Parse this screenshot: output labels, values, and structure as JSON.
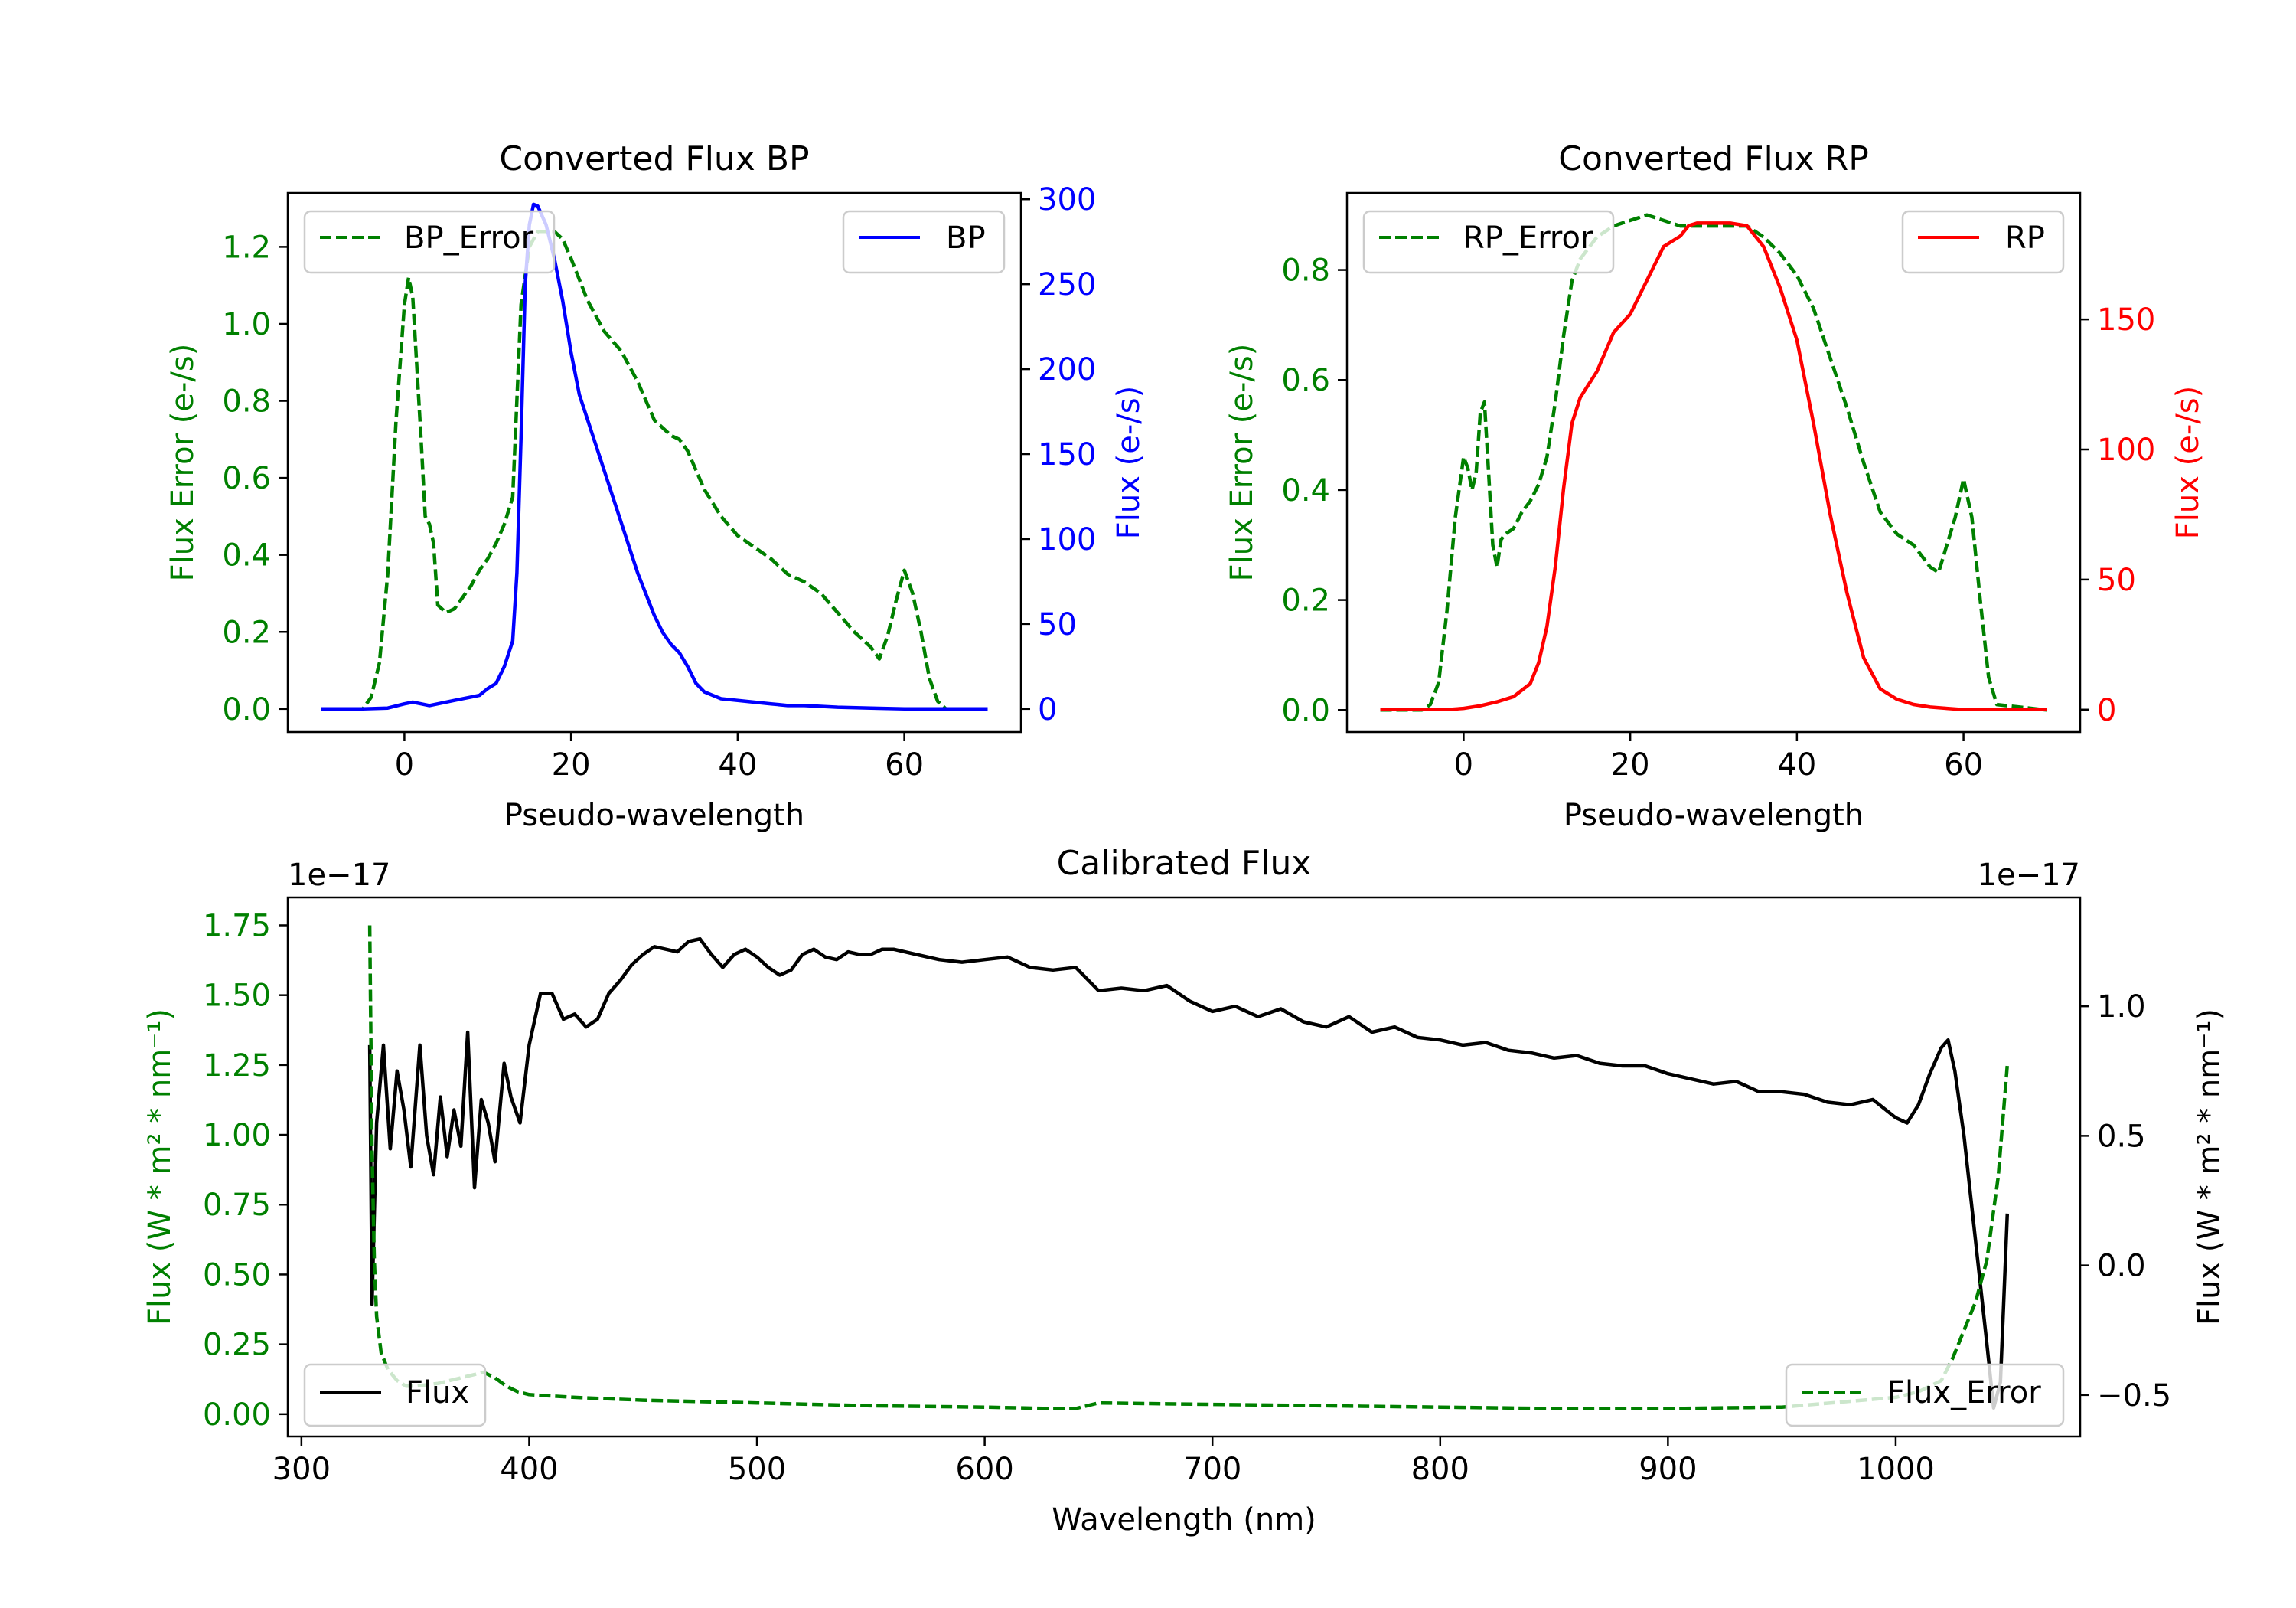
{
  "chart_data": [
    {
      "type": "line",
      "title": "Converted Flux BP",
      "xlabel": "Pseudo-wavelength",
      "ylabel_left": "Flux Error (e-/s)",
      "ylabel_right": "Flux (e-/s)",
      "xlim": [
        -14,
        74
      ],
      "ylim_left": [
        -0.06,
        1.34
      ],
      "ylim_right": [
        -13.6,
        303.7
      ],
      "xticks": [
        0,
        20,
        40,
        60
      ],
      "yticks_left": [
        0.0,
        0.2,
        0.4,
        0.6,
        0.8,
        1.0,
        1.2
      ],
      "yticks_right": [
        0,
        50,
        100,
        150,
        200,
        250,
        300
      ],
      "grid": false,
      "series": [
        {
          "name": "BP_Error",
          "axis": "left",
          "style": "dashed",
          "color": "#008000",
          "legend_position": "upper left",
          "x": [
            -10,
            -5,
            -4,
            -3,
            -2,
            -1,
            0,
            0.5,
            1,
            2,
            2.5,
            3,
            3.5,
            4,
            5,
            6,
            7,
            8,
            9,
            10,
            11,
            12,
            13,
            14,
            15,
            16,
            17,
            18,
            19,
            20,
            22,
            24,
            26,
            28,
            30,
            32,
            33,
            34,
            35,
            36,
            38,
            40,
            42,
            44,
            46,
            48,
            50,
            52,
            54,
            55,
            56,
            57,
            58,
            59,
            60,
            61,
            62,
            63,
            64,
            65,
            70
          ],
          "y": [
            0.0,
            0.0,
            0.03,
            0.12,
            0.35,
            0.75,
            1.05,
            1.12,
            1.07,
            0.7,
            0.5,
            0.48,
            0.43,
            0.27,
            0.25,
            0.26,
            0.29,
            0.32,
            0.36,
            0.39,
            0.43,
            0.48,
            0.55,
            1.05,
            1.2,
            1.24,
            1.24,
            1.24,
            1.22,
            1.17,
            1.06,
            0.98,
            0.93,
            0.85,
            0.75,
            0.71,
            0.7,
            0.67,
            0.62,
            0.57,
            0.5,
            0.45,
            0.42,
            0.39,
            0.35,
            0.33,
            0.3,
            0.25,
            0.2,
            0.18,
            0.16,
            0.13,
            0.19,
            0.28,
            0.36,
            0.3,
            0.2,
            0.08,
            0.02,
            0.0,
            0.0
          ]
        },
        {
          "name": "BP",
          "axis": "right",
          "style": "solid",
          "color": "#0000ff",
          "legend_position": "upper right",
          "x": [
            -10,
            -5,
            -2,
            0,
            1,
            2,
            3,
            4,
            6,
            8,
            9,
            10,
            11,
            12,
            13,
            13.5,
            14,
            14.5,
            15,
            15.5,
            16,
            17,
            18,
            19,
            20,
            21,
            22,
            24,
            26,
            28,
            30,
            31,
            32,
            33,
            34,
            35,
            36,
            37,
            38,
            40,
            42,
            44,
            46,
            48,
            50,
            52,
            56,
            60,
            65,
            70
          ],
          "y": [
            0,
            0,
            0.5,
            3,
            4,
            3,
            2,
            3,
            5,
            7,
            8,
            12,
            15,
            25,
            40,
            80,
            160,
            250,
            285,
            297,
            296,
            285,
            265,
            240,
            210,
            185,
            170,
            140,
            110,
            80,
            55,
            45,
            38,
            33,
            25,
            15,
            10,
            8,
            6,
            5,
            4,
            3,
            2,
            2,
            1.5,
            1,
            0.5,
            0,
            0,
            0
          ]
        }
      ]
    },
    {
      "type": "line",
      "title": "Converted Flux RP",
      "xlabel": "Pseudo-wavelength",
      "ylabel_left": "Flux Error (e-/s)",
      "ylabel_right": "Flux (e-/s)",
      "xlim": [
        -14,
        74
      ],
      "ylim_left": [
        -0.04,
        0.94
      ],
      "ylim_right": [
        -8.6,
        198.6
      ],
      "xticks": [
        0,
        20,
        40,
        60
      ],
      "yticks_left": [
        0.0,
        0.2,
        0.4,
        0.6,
        0.8
      ],
      "yticks_right": [
        0,
        50,
        100,
        150
      ],
      "grid": false,
      "series": [
        {
          "name": "RP_Error",
          "axis": "left",
          "style": "dashed",
          "color": "#008000",
          "legend_position": "upper left",
          "x": [
            -10,
            -5,
            -4,
            -3,
            -2,
            -1,
            0,
            0.5,
            1,
            1.5,
            2,
            2.5,
            3,
            3.5,
            4,
            4.5,
            5,
            6,
            7,
            8,
            9,
            10,
            11,
            12,
            13,
            14,
            16,
            18,
            20,
            22,
            24,
            26,
            28,
            30,
            32,
            34,
            36,
            38,
            40,
            42,
            44,
            46,
            48,
            50,
            52,
            54,
            56,
            57,
            58,
            59,
            60,
            61,
            62,
            63,
            64,
            70
          ],
          "y": [
            0.0,
            0.0,
            0.01,
            0.05,
            0.18,
            0.35,
            0.46,
            0.44,
            0.4,
            0.43,
            0.54,
            0.56,
            0.43,
            0.3,
            0.26,
            0.31,
            0.32,
            0.33,
            0.36,
            0.38,
            0.41,
            0.46,
            0.56,
            0.68,
            0.78,
            0.82,
            0.86,
            0.88,
            0.89,
            0.9,
            0.89,
            0.88,
            0.88,
            0.88,
            0.88,
            0.88,
            0.86,
            0.83,
            0.79,
            0.73,
            0.64,
            0.55,
            0.45,
            0.36,
            0.32,
            0.3,
            0.26,
            0.25,
            0.3,
            0.35,
            0.42,
            0.35,
            0.2,
            0.06,
            0.01,
            0.0
          ]
        },
        {
          "name": "RP",
          "axis": "right",
          "style": "solid",
          "color": "#ff0000",
          "legend_position": "upper right",
          "x": [
            -10,
            -5,
            -2,
            0,
            2,
            4,
            6,
            8,
            9,
            10,
            11,
            12,
            13,
            14,
            16,
            18,
            20,
            22,
            24,
            26,
            27,
            28,
            30,
            32,
            34,
            35,
            36,
            38,
            40,
            42,
            44,
            46,
            48,
            50,
            52,
            54,
            56,
            58,
            60,
            62,
            65,
            70
          ],
          "y": [
            0,
            0,
            0,
            0.5,
            1.5,
            3,
            5,
            10,
            18,
            32,
            55,
            85,
            110,
            120,
            130,
            145,
            152,
            165,
            178,
            182,
            186,
            187,
            187,
            187,
            186,
            182,
            178,
            162,
            142,
            110,
            75,
            45,
            20,
            8,
            4,
            2,
            1,
            0.5,
            0,
            0,
            0,
            0
          ]
        }
      ]
    },
    {
      "type": "line",
      "title": "Calibrated Flux",
      "xlabel": "Wavelength (nm)",
      "ylabel_left": "Flux (W * m² * nm⁻¹)",
      "ylabel_right": "Flux (W * m² * nm⁻¹)",
      "offset_left": "1e−17",
      "offset_right": "1e−17",
      "xlim": [
        294,
        1081
      ],
      "ylim_left": [
        -0.08,
        1.85
      ],
      "ylim_right": [
        -0.66,
        1.42
      ],
      "xticks": [
        300,
        400,
        500,
        600,
        700,
        800,
        900,
        1000
      ],
      "yticks_left": [
        0.0,
        0.25,
        0.5,
        0.75,
        1.0,
        1.25,
        1.5,
        1.75
      ],
      "yticks_left_labels": [
        "0.00",
        "0.25",
        "0.50",
        "0.75",
        "1.00",
        "1.25",
        "1.50",
        "1.75"
      ],
      "yticks_right": [
        -0.5,
        0.0,
        0.5,
        1.0
      ],
      "yticks_right_labels": [
        "−0.5",
        "0.0",
        "0.5",
        "1.0"
      ],
      "grid": false,
      "series": [
        {
          "name": "Flux",
          "axis": "right",
          "style": "solid",
          "color": "#000000",
          "legend_position": "lower left",
          "x": [
            330,
            331,
            333,
            336,
            339,
            342,
            345,
            348,
            352,
            355,
            358,
            361,
            364,
            367,
            370,
            373,
            376,
            379,
            382,
            385,
            389,
            392,
            396,
            400,
            405,
            410,
            415,
            420,
            425,
            430,
            435,
            440,
            445,
            450,
            455,
            460,
            465,
            470,
            475,
            480,
            485,
            490,
            495,
            500,
            505,
            510,
            515,
            520,
            525,
            530,
            535,
            540,
            545,
            550,
            555,
            560,
            570,
            580,
            590,
            600,
            610,
            620,
            630,
            640,
            650,
            660,
            670,
            680,
            690,
            700,
            710,
            720,
            730,
            740,
            750,
            760,
            770,
            780,
            790,
            800,
            810,
            820,
            830,
            840,
            850,
            860,
            870,
            880,
            890,
            900,
            910,
            920,
            930,
            940,
            950,
            960,
            970,
            980,
            990,
            1000,
            1005,
            1010,
            1015,
            1020,
            1023,
            1026,
            1030,
            1035,
            1040,
            1043,
            1046,
            1049
          ],
          "y": [
            0.85,
            -0.15,
            0.55,
            0.85,
            0.45,
            0.75,
            0.6,
            0.38,
            0.85,
            0.5,
            0.35,
            0.65,
            0.42,
            0.6,
            0.46,
            0.9,
            0.3,
            0.64,
            0.55,
            0.4,
            0.78,
            0.65,
            0.55,
            0.85,
            1.05,
            1.05,
            0.95,
            0.97,
            0.92,
            0.95,
            1.05,
            1.1,
            1.16,
            1.2,
            1.23,
            1.22,
            1.21,
            1.25,
            1.26,
            1.2,
            1.15,
            1.2,
            1.22,
            1.19,
            1.15,
            1.12,
            1.14,
            1.2,
            1.22,
            1.19,
            1.18,
            1.21,
            1.2,
            1.2,
            1.22,
            1.22,
            1.2,
            1.18,
            1.17,
            1.18,
            1.19,
            1.15,
            1.14,
            1.15,
            1.06,
            1.07,
            1.06,
            1.08,
            1.02,
            0.98,
            1.0,
            0.96,
            0.99,
            0.94,
            0.92,
            0.96,
            0.9,
            0.92,
            0.88,
            0.87,
            0.85,
            0.86,
            0.83,
            0.82,
            0.8,
            0.81,
            0.78,
            0.77,
            0.77,
            0.74,
            0.72,
            0.7,
            0.71,
            0.67,
            0.67,
            0.66,
            0.63,
            0.62,
            0.64,
            0.57,
            0.55,
            0.62,
            0.74,
            0.84,
            0.87,
            0.75,
            0.5,
            0.1,
            -0.3,
            -0.55,
            -0.45,
            0.2
          ]
        },
        {
          "name": "Flux_Error",
          "axis": "left",
          "style": "dashed",
          "color": "#008000",
          "legend_position": "lower right",
          "x": [
            330,
            331,
            332,
            333,
            335,
            338,
            342,
            346,
            350,
            360,
            370,
            380,
            385,
            390,
            395,
            400,
            420,
            450,
            500,
            550,
            600,
            630,
            640,
            650,
            700,
            750,
            800,
            850,
            900,
            950,
            1000,
            1010,
            1020,
            1025,
            1030,
            1035,
            1040,
            1045,
            1049
          ],
          "y": [
            1.75,
            0.95,
            0.55,
            0.35,
            0.22,
            0.16,
            0.12,
            0.1,
            0.1,
            0.11,
            0.13,
            0.15,
            0.13,
            0.1,
            0.08,
            0.07,
            0.06,
            0.05,
            0.04,
            0.03,
            0.025,
            0.02,
            0.02,
            0.04,
            0.035,
            0.03,
            0.025,
            0.02,
            0.02,
            0.025,
            0.06,
            0.08,
            0.12,
            0.2,
            0.3,
            0.4,
            0.55,
            0.85,
            1.25
          ]
        }
      ]
    }
  ],
  "legend_labels": {
    "bp_error": "BP_Error",
    "bp": "BP",
    "rp_error": "RP_Error",
    "rp": "RP",
    "flux": "Flux",
    "flux_error": "Flux_Error"
  }
}
